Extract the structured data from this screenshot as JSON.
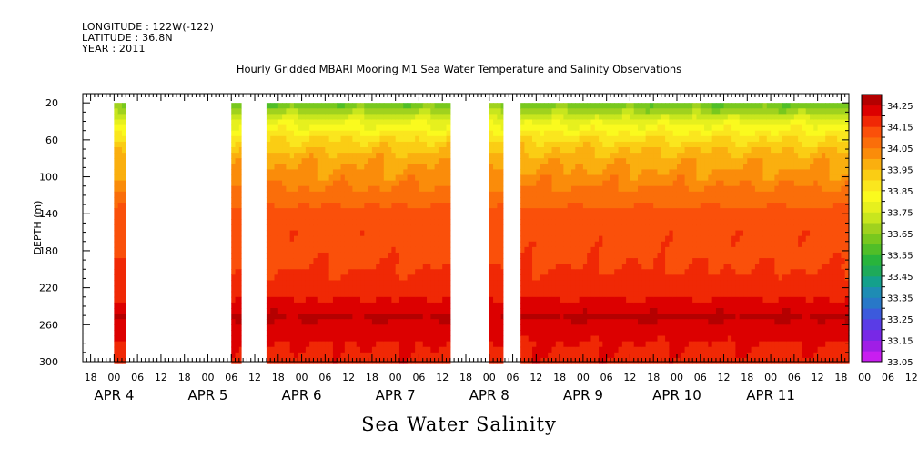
{
  "header": {
    "longitude": "LONGITUDE : 122W(-122)",
    "latitude": "LATITUDE : 36.8N",
    "year": "YEAR : 2011"
  },
  "chart_data": {
    "type": "heatmap",
    "title": "Hourly Gridded MBARI Mooring M1 Sea Water Temperature and Salinity Observations",
    "xlabel": "Sea Water Salinity",
    "ylabel": "DEPTH (m)",
    "x_unit": "hours since APR 4 00",
    "xlim": [
      -8,
      188
    ],
    "ylim": [
      300,
      10
    ],
    "y_reversed": true,
    "y_ticks": [
      20,
      60,
      100,
      140,
      180,
      220,
      260,
      300
    ],
    "hour_tick_labels": [
      "18",
      "00",
      "06",
      "12",
      "18",
      "00",
      "06",
      "12",
      "18",
      "00",
      "06",
      "12",
      "18",
      "00",
      "06",
      "12",
      "18",
      "00",
      "06",
      "12",
      "18",
      "00",
      "06",
      "12",
      "18",
      "00",
      "06",
      "12",
      "18",
      "00",
      "06",
      "12",
      "18",
      "00",
      "06",
      "12"
    ],
    "hour_ticks_start": -6,
    "day_labels": [
      {
        "text": "APR  4",
        "hour": 0
      },
      {
        "text": "APR  5",
        "hour": 24
      },
      {
        "text": "APR  6",
        "hour": 48
      },
      {
        "text": "APR  7",
        "hour": 72
      },
      {
        "text": "APR  8",
        "hour": 96
      },
      {
        "text": "APR  9",
        "hour": 120
      },
      {
        "text": "APR 10",
        "hour": 144
      },
      {
        "text": "APR 11",
        "hour": 168
      }
    ],
    "data_segments": [
      {
        "start": 0,
        "end": 3
      },
      {
        "start": 30,
        "end": 32.5
      },
      {
        "start": 39,
        "end": 86
      },
      {
        "start": 96,
        "end": 99.5
      },
      {
        "start": 104,
        "end": 188
      }
    ],
    "depth_profile": [
      {
        "depth": 20,
        "salinity": 33.6
      },
      {
        "depth": 40,
        "salinity": 33.78
      },
      {
        "depth": 60,
        "salinity": 33.9
      },
      {
        "depth": 80,
        "salinity": 33.98
      },
      {
        "depth": 100,
        "salinity": 34.02
      },
      {
        "depth": 120,
        "salinity": 34.07
      },
      {
        "depth": 140,
        "salinity": 34.12
      },
      {
        "depth": 160,
        "salinity": 34.14
      },
      {
        "depth": 180,
        "salinity": 34.14
      },
      {
        "depth": 200,
        "salinity": 34.15
      },
      {
        "depth": 220,
        "salinity": 34.17
      },
      {
        "depth": 240,
        "salinity": 34.22
      },
      {
        "depth": 250,
        "salinity": 34.26
      },
      {
        "depth": 260,
        "salinity": 34.24
      },
      {
        "depth": 280,
        "salinity": 34.2
      },
      {
        "depth": 300,
        "salinity": 34.19
      }
    ],
    "colorbar": {
      "levels": [
        33.05,
        33.1,
        33.15,
        33.2,
        33.25,
        33.3,
        33.35,
        33.4,
        33.45,
        33.5,
        33.55,
        33.6,
        33.65,
        33.7,
        33.75,
        33.8,
        33.85,
        33.9,
        33.95,
        34.0,
        34.05,
        34.1,
        34.15,
        34.2,
        34.25,
        34.3
      ],
      "labels": [
        "34.25",
        "34.15",
        "34.05",
        "33.95",
        "33.85",
        "33.75",
        "33.65",
        "33.55",
        "33.45",
        "33.35",
        "33.25",
        "33.15",
        "33.05"
      ],
      "colors": [
        "#c81ef0",
        "#a01ee6",
        "#7828e6",
        "#5a3ce6",
        "#3c5adc",
        "#2878c8",
        "#1e8cb4",
        "#14a08c",
        "#1eaa5a",
        "#28b43c",
        "#50be28",
        "#78c81e",
        "#a0d21e",
        "#c8e61e",
        "#e6f01e",
        "#fafa1e",
        "#fae61e",
        "#facd14",
        "#faaf0f",
        "#fa8c0a",
        "#fa6e0a",
        "#fa500a",
        "#f02805",
        "#dc0000",
        "#b40000"
      ]
    }
  }
}
